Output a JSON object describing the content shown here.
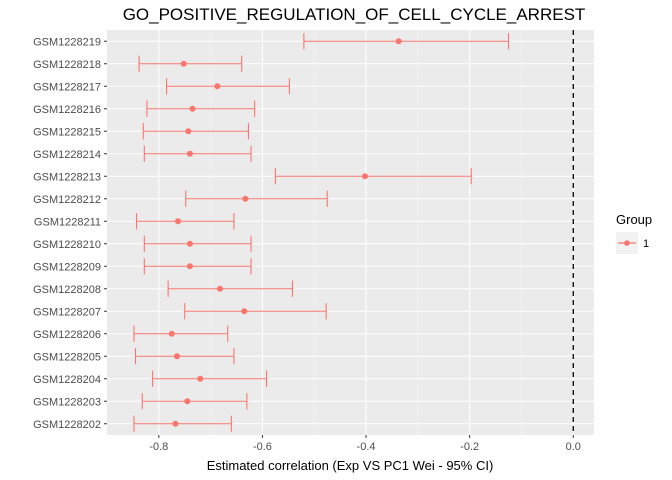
{
  "chart_data": {
    "type": "scatter",
    "title": "GO_POSITIVE_REGULATION_OF_CELL_CYCLE_ARREST",
    "xlabel": "Estimated correlation (Exp VS PC1 Wei - 95% CI)",
    "ylabel": "",
    "xlim": [
      -0.9,
      0.04
    ],
    "x_ticks": [
      -0.8,
      -0.6,
      -0.4,
      -0.2,
      0.0
    ],
    "x_tick_labels": [
      "-0.8",
      "-0.6",
      "-0.4",
      "-0.2",
      "0.0"
    ],
    "reference_line": {
      "x": 0.0,
      "style": "dashed",
      "color": "#000000"
    },
    "grid": true,
    "legend": {
      "title": "Group",
      "placement": "right",
      "entries": [
        "1"
      ]
    },
    "series_color": "#F8766D",
    "panel_color": "#EBEBEB",
    "categories": [
      "GSM1228219",
      "GSM1228218",
      "GSM1228217",
      "GSM1228216",
      "GSM1228215",
      "GSM1228214",
      "GSM1228213",
      "GSM1228212",
      "GSM1228211",
      "GSM1228210",
      "GSM1228209",
      "GSM1228208",
      "GSM1228207",
      "GSM1228206",
      "GSM1228205",
      "GSM1228204",
      "GSM1228203",
      "GSM1228202"
    ],
    "series": [
      {
        "name": "1",
        "estimate": [
          -0.337,
          -0.752,
          -0.687,
          -0.735,
          -0.743,
          -0.74,
          -0.402,
          -0.633,
          -0.763,
          -0.74,
          -0.74,
          -0.682,
          -0.635,
          -0.775,
          -0.765,
          -0.72,
          -0.745,
          -0.768
        ],
        "lower": [
          -0.52,
          -0.838,
          -0.785,
          -0.823,
          -0.83,
          -0.828,
          -0.575,
          -0.748,
          -0.843,
          -0.828,
          -0.828,
          -0.782,
          -0.75,
          -0.848,
          -0.845,
          -0.812,
          -0.832,
          -0.848
        ],
        "upper": [
          -0.125,
          -0.64,
          -0.548,
          -0.615,
          -0.627,
          -0.622,
          -0.197,
          -0.475,
          -0.655,
          -0.622,
          -0.622,
          -0.542,
          -0.477,
          -0.667,
          -0.655,
          -0.592,
          -0.63,
          -0.66
        ]
      }
    ]
  }
}
